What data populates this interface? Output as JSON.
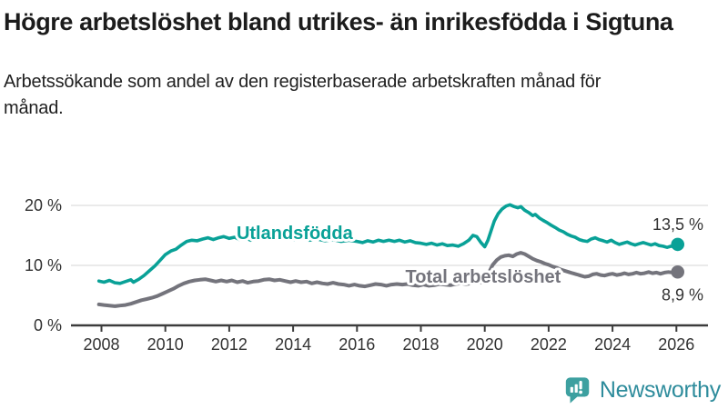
{
  "header": {
    "title": "Högre arbetslöshet bland utrikes- än inrikesfödda i Sigtuna",
    "subtitle": "Arbetssökande som andel av den registerbaserade arbetskraften månad för månad."
  },
  "chart_data": {
    "type": "line",
    "title": "",
    "xlabel": "",
    "ylabel": "",
    "ylim": [
      0,
      21.5
    ],
    "xlim": [
      2007.9,
      2026.9
    ],
    "grid": "horizontal",
    "legend_position": "inline-labels",
    "yticks": [
      {
        "value": 0,
        "label": "0 %"
      },
      {
        "value": 10,
        "label": "10 %"
      },
      {
        "value": 20,
        "label": "20 %"
      }
    ],
    "xticks": [
      {
        "value": 2008,
        "label": "2008"
      },
      {
        "value": 2010,
        "label": "2010"
      },
      {
        "value": 2012,
        "label": "2012"
      },
      {
        "value": 2014,
        "label": "2014"
      },
      {
        "value": 2016,
        "label": "2016"
      },
      {
        "value": 2018,
        "label": "2018"
      },
      {
        "value": 2020,
        "label": "2020"
      },
      {
        "value": 2022,
        "label": "2022"
      },
      {
        "value": 2024,
        "label": "2024"
      },
      {
        "value": 2026,
        "label": "2026"
      }
    ],
    "colors": {
      "accent_teal": "#09a197",
      "neutral_gray": "#74747c",
      "gridline": "#e3e3e3",
      "axis": "#3c3c3c",
      "tick_text": "#333333"
    },
    "series": [
      {
        "name": "Utlandsfödda",
        "slug": "utlandsfodda",
        "color": "#09a197",
        "width": 3.6,
        "end_label": "13,5 %",
        "end_label_position": "above",
        "name_anchor": [
          2014.05,
          15.45
        ],
        "points": [
          [
            2007.92,
            7.4
          ],
          [
            2008.08,
            7.2
          ],
          [
            2008.25,
            7.5
          ],
          [
            2008.42,
            7.1
          ],
          [
            2008.58,
            7.0
          ],
          [
            2008.75,
            7.3
          ],
          [
            2008.92,
            7.6
          ],
          [
            2009.0,
            7.2
          ],
          [
            2009.17,
            7.7
          ],
          [
            2009.33,
            8.3
          ],
          [
            2009.5,
            9.1
          ],
          [
            2009.67,
            9.9
          ],
          [
            2009.83,
            10.8
          ],
          [
            2010.0,
            11.8
          ],
          [
            2010.17,
            12.4
          ],
          [
            2010.33,
            12.7
          ],
          [
            2010.5,
            13.4
          ],
          [
            2010.67,
            14.0
          ],
          [
            2010.83,
            14.2
          ],
          [
            2011.0,
            14.1
          ],
          [
            2011.17,
            14.4
          ],
          [
            2011.33,
            14.6
          ],
          [
            2011.5,
            14.3
          ],
          [
            2011.67,
            14.6
          ],
          [
            2011.83,
            14.8
          ],
          [
            2012.0,
            14.5
          ],
          [
            2012.17,
            14.7
          ],
          [
            2012.33,
            14.3
          ],
          [
            2012.5,
            14.6
          ],
          [
            2012.67,
            14.2
          ],
          [
            2012.83,
            14.5
          ],
          [
            2013.0,
            14.4
          ],
          [
            2013.25,
            14.6
          ],
          [
            2013.5,
            14.4
          ],
          [
            2013.75,
            14.5
          ],
          [
            2014.0,
            14.3
          ],
          [
            2014.25,
            14.5
          ],
          [
            2014.5,
            14.2
          ],
          [
            2014.75,
            14.4
          ],
          [
            2015.0,
            14.1
          ],
          [
            2015.25,
            14.3
          ],
          [
            2015.5,
            14.0
          ],
          [
            2015.75,
            14.2
          ],
          [
            2016.0,
            14.0
          ],
          [
            2016.17,
            13.8
          ],
          [
            2016.33,
            14.1
          ],
          [
            2016.5,
            13.9
          ],
          [
            2016.67,
            14.2
          ],
          [
            2016.83,
            14.0
          ],
          [
            2017.0,
            14.2
          ],
          [
            2017.17,
            14.0
          ],
          [
            2017.33,
            14.2
          ],
          [
            2017.5,
            13.9
          ],
          [
            2017.67,
            14.1
          ],
          [
            2017.83,
            13.8
          ],
          [
            2018.0,
            13.7
          ],
          [
            2018.17,
            13.5
          ],
          [
            2018.33,
            13.7
          ],
          [
            2018.5,
            13.4
          ],
          [
            2018.67,
            13.6
          ],
          [
            2018.83,
            13.3
          ],
          [
            2019.0,
            13.4
          ],
          [
            2019.17,
            13.2
          ],
          [
            2019.33,
            13.6
          ],
          [
            2019.5,
            14.2
          ],
          [
            2019.63,
            15.0
          ],
          [
            2019.75,
            14.8
          ],
          [
            2019.88,
            13.8
          ],
          [
            2020.0,
            13.1
          ],
          [
            2020.1,
            14.2
          ],
          [
            2020.2,
            15.8
          ],
          [
            2020.3,
            17.4
          ],
          [
            2020.42,
            18.6
          ],
          [
            2020.54,
            19.4
          ],
          [
            2020.67,
            19.9
          ],
          [
            2020.79,
            20.1
          ],
          [
            2020.92,
            19.8
          ],
          [
            2021.04,
            19.6
          ],
          [
            2021.13,
            19.8
          ],
          [
            2021.25,
            19.2
          ],
          [
            2021.38,
            18.8
          ],
          [
            2021.5,
            18.3
          ],
          [
            2021.58,
            18.5
          ],
          [
            2021.71,
            17.9
          ],
          [
            2021.83,
            17.5
          ],
          [
            2021.96,
            17.1
          ],
          [
            2022.08,
            16.7
          ],
          [
            2022.21,
            16.3
          ],
          [
            2022.33,
            15.9
          ],
          [
            2022.46,
            15.6
          ],
          [
            2022.58,
            15.2
          ],
          [
            2022.71,
            14.9
          ],
          [
            2022.83,
            14.7
          ],
          [
            2022.96,
            14.3
          ],
          [
            2023.08,
            14.1
          ],
          [
            2023.21,
            14.0
          ],
          [
            2023.33,
            14.4
          ],
          [
            2023.46,
            14.6
          ],
          [
            2023.58,
            14.3
          ],
          [
            2023.71,
            14.1
          ],
          [
            2023.83,
            13.9
          ],
          [
            2023.96,
            14.2
          ],
          [
            2024.08,
            13.8
          ],
          [
            2024.21,
            13.5
          ],
          [
            2024.33,
            13.7
          ],
          [
            2024.46,
            13.9
          ],
          [
            2024.58,
            13.6
          ],
          [
            2024.71,
            13.4
          ],
          [
            2024.83,
            13.6
          ],
          [
            2024.96,
            13.8
          ],
          [
            2025.08,
            13.6
          ],
          [
            2025.21,
            13.4
          ],
          [
            2025.33,
            13.6
          ],
          [
            2025.46,
            13.3
          ],
          [
            2025.58,
            13.2
          ],
          [
            2025.71,
            13.0
          ],
          [
            2025.83,
            13.2
          ],
          [
            2025.92,
            13.1
          ],
          [
            2026.04,
            13.5
          ]
        ]
      },
      {
        "name": "Total arbetslöshet",
        "slug": "total-arbetsloshet",
        "color": "#74747c",
        "width": 4,
        "end_label": "8,9 %",
        "end_label_position": "below",
        "name_anchor": [
          2019.95,
          8.2
        ],
        "points": [
          [
            2007.92,
            3.5
          ],
          [
            2008.08,
            3.4
          ],
          [
            2008.25,
            3.3
          ],
          [
            2008.42,
            3.2
          ],
          [
            2008.58,
            3.3
          ],
          [
            2008.75,
            3.4
          ],
          [
            2008.92,
            3.6
          ],
          [
            2009.08,
            3.9
          ],
          [
            2009.25,
            4.2
          ],
          [
            2009.42,
            4.4
          ],
          [
            2009.58,
            4.6
          ],
          [
            2009.75,
            4.9
          ],
          [
            2009.92,
            5.3
          ],
          [
            2010.08,
            5.7
          ],
          [
            2010.25,
            6.1
          ],
          [
            2010.42,
            6.6
          ],
          [
            2010.58,
            7.0
          ],
          [
            2010.75,
            7.3
          ],
          [
            2010.92,
            7.5
          ],
          [
            2011.08,
            7.6
          ],
          [
            2011.25,
            7.7
          ],
          [
            2011.42,
            7.5
          ],
          [
            2011.58,
            7.3
          ],
          [
            2011.75,
            7.5
          ],
          [
            2011.92,
            7.3
          ],
          [
            2012.08,
            7.5
          ],
          [
            2012.25,
            7.2
          ],
          [
            2012.42,
            7.4
          ],
          [
            2012.58,
            7.1
          ],
          [
            2012.75,
            7.3
          ],
          [
            2012.92,
            7.4
          ],
          [
            2013.08,
            7.6
          ],
          [
            2013.25,
            7.7
          ],
          [
            2013.42,
            7.5
          ],
          [
            2013.58,
            7.6
          ],
          [
            2013.75,
            7.4
          ],
          [
            2013.92,
            7.2
          ],
          [
            2014.08,
            7.4
          ],
          [
            2014.25,
            7.2
          ],
          [
            2014.42,
            7.3
          ],
          [
            2014.58,
            7.0
          ],
          [
            2014.75,
            7.2
          ],
          [
            2014.92,
            7.0
          ],
          [
            2015.08,
            6.9
          ],
          [
            2015.25,
            7.1
          ],
          [
            2015.42,
            6.9
          ],
          [
            2015.58,
            6.8
          ],
          [
            2015.75,
            6.6
          ],
          [
            2015.92,
            6.8
          ],
          [
            2016.08,
            6.6
          ],
          [
            2016.25,
            6.5
          ],
          [
            2016.42,
            6.7
          ],
          [
            2016.58,
            6.9
          ],
          [
            2016.75,
            6.8
          ],
          [
            2016.92,
            6.6
          ],
          [
            2017.08,
            6.8
          ],
          [
            2017.25,
            6.9
          ],
          [
            2017.42,
            6.8
          ],
          [
            2017.58,
            6.9
          ],
          [
            2017.75,
            6.7
          ],
          [
            2017.92,
            6.6
          ],
          [
            2018.08,
            6.8
          ],
          [
            2018.25,
            6.6
          ],
          [
            2018.42,
            6.7
          ],
          [
            2018.58,
            6.9
          ],
          [
            2018.75,
            6.8
          ],
          [
            2018.92,
            6.7
          ],
          [
            2019.08,
            6.9
          ],
          [
            2019.25,
            7.0
          ],
          [
            2019.42,
            6.9
          ],
          [
            2019.58,
            7.0
          ],
          [
            2019.75,
            7.1
          ],
          [
            2019.92,
            7.2
          ],
          [
            2020.04,
            7.8
          ],
          [
            2020.13,
            8.8
          ],
          [
            2020.25,
            10.1
          ],
          [
            2020.38,
            10.9
          ],
          [
            2020.5,
            11.4
          ],
          [
            2020.63,
            11.6
          ],
          [
            2020.75,
            11.7
          ],
          [
            2020.88,
            11.5
          ],
          [
            2021.0,
            11.9
          ],
          [
            2021.13,
            12.1
          ],
          [
            2021.25,
            11.9
          ],
          [
            2021.38,
            11.5
          ],
          [
            2021.5,
            11.1
          ],
          [
            2021.63,
            10.8
          ],
          [
            2021.75,
            10.6
          ],
          [
            2021.88,
            10.3
          ],
          [
            2022.0,
            10.1
          ],
          [
            2022.13,
            9.8
          ],
          [
            2022.25,
            9.6
          ],
          [
            2022.38,
            9.3
          ],
          [
            2022.5,
            9.1
          ],
          [
            2022.63,
            8.9
          ],
          [
            2022.75,
            8.7
          ],
          [
            2022.88,
            8.5
          ],
          [
            2023.0,
            8.3
          ],
          [
            2023.13,
            8.1
          ],
          [
            2023.25,
            8.2
          ],
          [
            2023.38,
            8.5
          ],
          [
            2023.5,
            8.6
          ],
          [
            2023.63,
            8.4
          ],
          [
            2023.75,
            8.3
          ],
          [
            2023.88,
            8.5
          ],
          [
            2024.0,
            8.6
          ],
          [
            2024.13,
            8.4
          ],
          [
            2024.25,
            8.5
          ],
          [
            2024.38,
            8.7
          ],
          [
            2024.5,
            8.5
          ],
          [
            2024.63,
            8.6
          ],
          [
            2024.75,
            8.8
          ],
          [
            2024.88,
            8.6
          ],
          [
            2025.0,
            8.7
          ],
          [
            2025.13,
            8.9
          ],
          [
            2025.25,
            8.7
          ],
          [
            2025.38,
            8.8
          ],
          [
            2025.5,
            8.6
          ],
          [
            2025.63,
            8.8
          ],
          [
            2025.75,
            8.9
          ],
          [
            2025.88,
            8.8
          ],
          [
            2026.04,
            8.9
          ]
        ]
      }
    ]
  },
  "footer": {
    "brand": "Newsworthy",
    "logo_colors": {
      "bubble": "#3da0a0",
      "wordmark": "#2e8c9c"
    }
  }
}
